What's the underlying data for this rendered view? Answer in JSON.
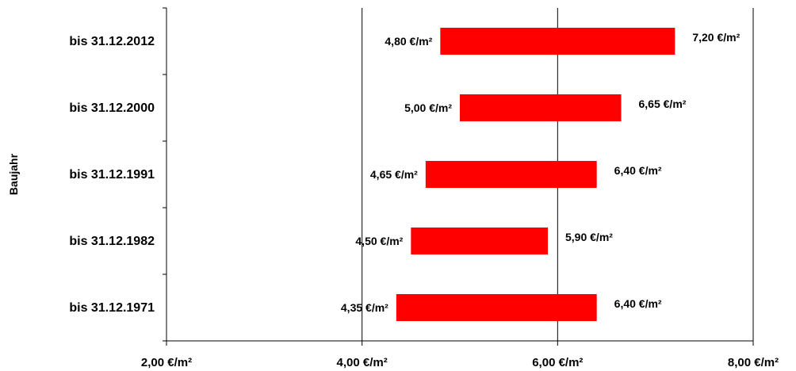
{
  "chart_data": {
    "type": "bar",
    "orientation": "horizontal",
    "ylabel": "Baujahr",
    "categories": [
      "bis 31.12.2012",
      "bis 31.12.2000",
      "bis 31.12.1991",
      "bis 31.12.1982",
      "bis 31.12.1971"
    ],
    "ranges": [
      {
        "low": 4.8,
        "high": 7.2,
        "low_label": "4,80  €/m²",
        "high_label": "7,20 €/m²"
      },
      {
        "low": 5.0,
        "high": 6.65,
        "low_label": "5,00  €/m²",
        "high_label": "6,65 €/m²"
      },
      {
        "low": 4.65,
        "high": 6.4,
        "low_label": "4,65  €/m²",
        "high_label": "6,40 €/m²"
      },
      {
        "low": 4.5,
        "high": 5.9,
        "low_label": "4,50  €/m²",
        "high_label": "5,90 €/m²"
      },
      {
        "low": 4.35,
        "high": 6.4,
        "low_label": "4,35  €/m²",
        "high_label": "6,40 €/m²"
      }
    ],
    "xlim": [
      2,
      8
    ],
    "x_ticks": [
      2,
      4,
      6,
      8
    ],
    "x_tick_labels": [
      "2,00 €/m²",
      "4,00 €/m²",
      "6,00 €/m²",
      "8,00 €/m²"
    ],
    "grid": "vertical",
    "bar_color": "#ff0000"
  }
}
